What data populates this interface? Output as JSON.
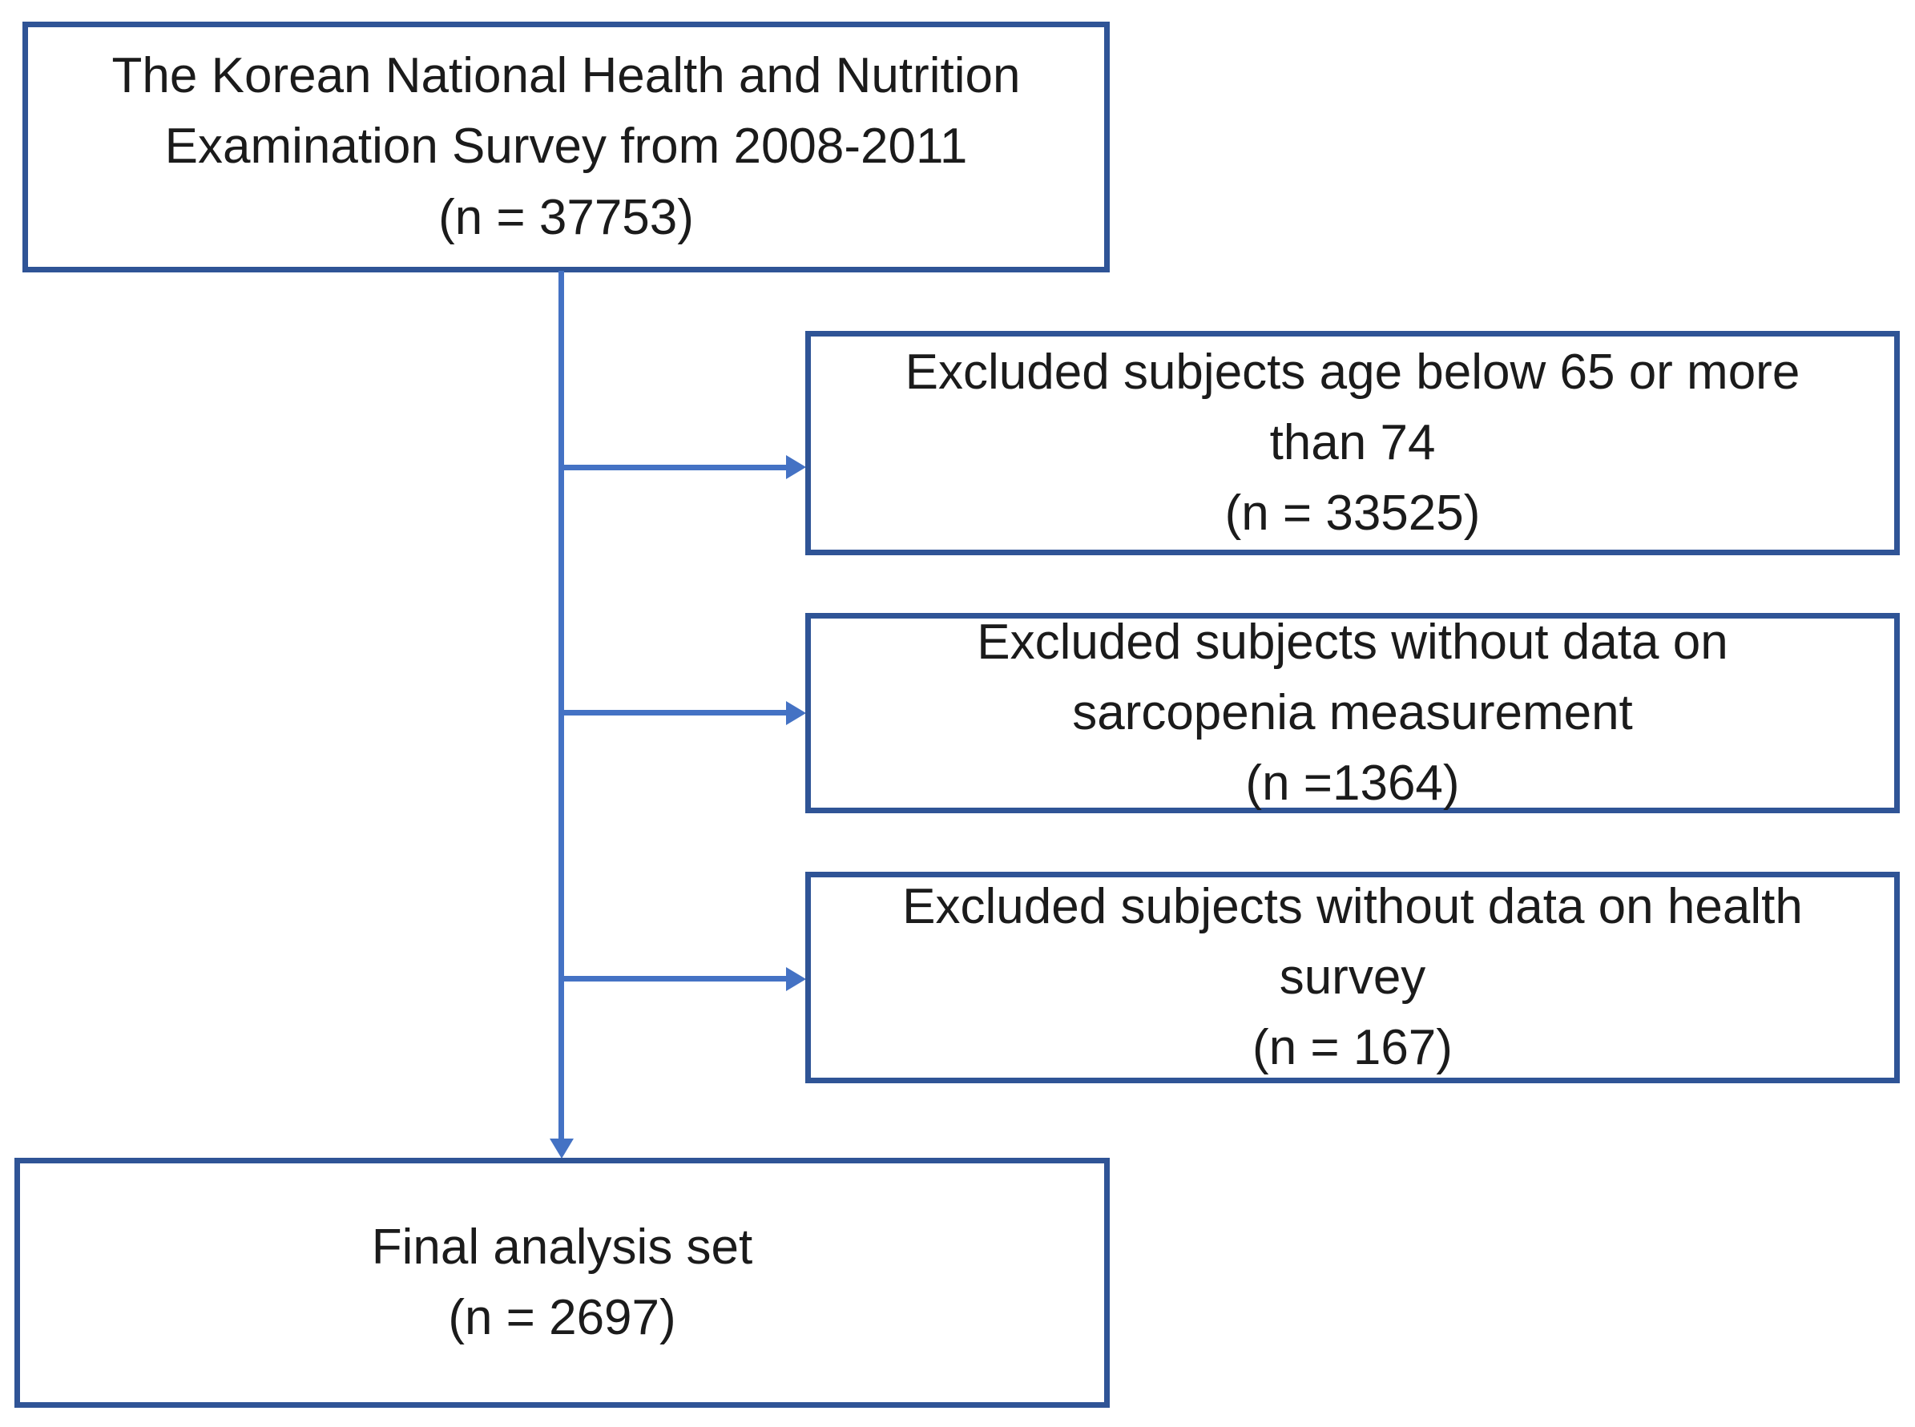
{
  "diagram": {
    "boxes": [
      {
        "id": "survey-source",
        "lines": [
          "The Korean National Health and Nutrition",
          "Examination Survey from 2008-2011",
          "(n = 37753)"
        ],
        "n": 37753
      },
      {
        "id": "excluded-age",
        "lines": [
          "Excluded subjects age below 65 or more",
          "than 74",
          "(n = 33525)"
        ],
        "n": 33525
      },
      {
        "id": "excluded-sarcopenia",
        "lines": [
          "Excluded subjects without data on",
          "sarcopenia measurement",
          "(n =1364)"
        ],
        "n": 1364
      },
      {
        "id": "excluded-health-survey",
        "lines": [
          "Excluded subjects without data on health",
          "survey",
          "(n = 167)"
        ],
        "n": 167
      },
      {
        "id": "final-analysis",
        "lines": [
          "Final analysis set",
          "(n = 2697)"
        ],
        "n": 2697
      }
    ]
  },
  "colors": {
    "box_border": "#2F5496",
    "connector": "#4472C4",
    "text": "#1B1B1B",
    "background": "#FFFFFF"
  }
}
